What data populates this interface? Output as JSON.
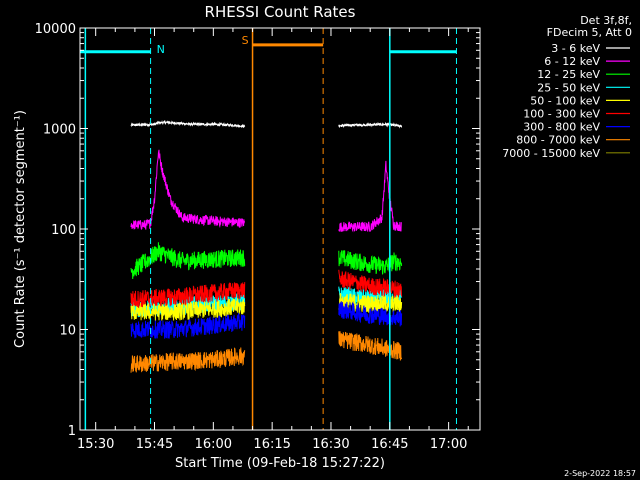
{
  "chart_data": {
    "type": "line",
    "title": "RHESSI Count Rates",
    "xlabel": "Start Time (09-Feb-18 15:27:22)",
    "ylabel": "Count Rate (s⁻¹ detector segment⁻¹)",
    "xlim": [
      "15:26",
      "17:08"
    ],
    "ylim": [
      1,
      10000
    ],
    "yscale": "log",
    "x_ticks": [
      "15:30",
      "15:45",
      "16:00",
      "16:15",
      "16:30",
      "16:45",
      "17:00"
    ],
    "y_ticks": [
      "1",
      "10",
      "100",
      "1000",
      "10000"
    ],
    "legend_header": [
      "Det 3f,8f,",
      "FDecim 5, Att 0"
    ],
    "legend_position": "top-right, outside plot",
    "series": [
      {
        "name": "3 - 6 keV",
        "color": "#ffffff",
        "segments": [
          {
            "x": [
              "15:39",
              "15:45",
              "15:46",
              "15:48",
              "15:55",
              "16:00",
              "16:05",
              "16:08"
            ],
            "y": [
              1080,
              1100,
              1140,
              1150,
              1100,
              1100,
              1080,
              1050
            ]
          },
          {
            "x": [
              "16:32",
              "16:35",
              "16:40",
              "16:44",
              "16:46",
              "16:48"
            ],
            "y": [
              1060,
              1080,
              1090,
              1100,
              1080,
              1050
            ]
          }
        ]
      },
      {
        "name": "6 - 12 keV",
        "color": "#ff00ff",
        "segments": [
          {
            "x": [
              "15:39",
              "15:43",
              "15:44",
              "15:45",
              "15:46",
              "15:47",
              "15:49",
              "15:52",
              "16:00",
              "16:08"
            ],
            "y": [
              110,
              110,
              115,
              200,
              600,
              380,
              200,
              130,
              120,
              115
            ]
          },
          {
            "x": [
              "16:32",
              "16:40",
              "16:43",
              "16:44",
              "16:45",
              "16:46",
              "16:48"
            ],
            "y": [
              105,
              105,
              130,
              430,
              200,
              110,
              105
            ]
          }
        ]
      },
      {
        "name": "12 - 25 keV",
        "color": "#00ff00",
        "segments": [
          {
            "x": [
              "15:39",
              "15:42",
              "15:46",
              "15:48",
              "15:52",
              "16:00",
              "16:08"
            ],
            "y": [
              38,
              45,
              60,
              55,
              48,
              50,
              52
            ]
          },
          {
            "x": [
              "16:32",
              "16:38",
              "16:44",
              "16:46",
              "16:48"
            ],
            "y": [
              52,
              46,
              42,
              48,
              46
            ]
          }
        ]
      },
      {
        "name": "25 - 50 keV",
        "color": "#00ffff",
        "segments": [
          {
            "x": [
              "15:39",
              "15:50",
              "16:00",
              "16:08"
            ],
            "y": [
              16,
              17,
              18,
              19
            ]
          },
          {
            "x": [
              "16:32",
              "16:40",
              "16:48"
            ],
            "y": [
              22,
              20,
              22
            ]
          }
        ]
      },
      {
        "name": "50 - 100 keV",
        "color": "#ffff00",
        "segments": [
          {
            "x": [
              "15:39",
              "15:50",
              "16:00",
              "16:08"
            ],
            "y": [
              15,
              15,
              16,
              17
            ]
          },
          {
            "x": [
              "16:32",
              "16:40",
              "16:48"
            ],
            "y": [
              19,
              18,
              18
            ]
          }
        ]
      },
      {
        "name": "100 - 300 keV",
        "color": "#ff0000",
        "segments": [
          {
            "x": [
              "15:39",
              "15:50",
              "16:00",
              "16:08"
            ],
            "y": [
              20,
              21,
              23,
              25
            ]
          },
          {
            "x": [
              "16:32",
              "16:40",
              "16:48"
            ],
            "y": [
              32,
              27,
              25
            ]
          }
        ]
      },
      {
        "name": "300 - 800 keV",
        "color": "#0000ff",
        "segments": [
          {
            "x": [
              "15:39",
              "15:50",
              "16:00",
              "16:08"
            ],
            "y": [
              10,
              10,
              11,
              12
            ]
          },
          {
            "x": [
              "16:32",
              "16:40",
              "16:48"
            ],
            "y": [
              16,
              14,
              13
            ]
          }
        ]
      },
      {
        "name": "800 - 7000 keV",
        "color": "#ff8800",
        "segments": [
          {
            "x": [
              "15:39",
              "15:50",
              "16:00",
              "16:08"
            ],
            "y": [
              4.5,
              4.8,
              5,
              5.5
            ]
          },
          {
            "x": [
              "16:32",
              "16:40",
              "16:48"
            ],
            "y": [
              8,
              7,
              6
            ]
          }
        ]
      },
      {
        "name": "7000 - 15000 keV",
        "color": "#808000",
        "segments": []
      }
    ],
    "annotations": [
      {
        "label": "N",
        "color": "#00ffff",
        "y": 5800,
        "x": [
          "15:26",
          "15:44"
        ]
      },
      {
        "label": "",
        "color": "#00ffff",
        "y": 5800,
        "x": [
          "16:45",
          "17:02"
        ]
      },
      {
        "label": "S",
        "color": "#ff8800",
        "y": 6800,
        "x": [
          "16:10",
          "16:28"
        ]
      }
    ],
    "vlines": [
      {
        "x": "15:27:22",
        "color": "#00ffff",
        "style": "solid"
      },
      {
        "x": "15:44",
        "color": "#00ffff",
        "style": "dashed"
      },
      {
        "x": "16:45",
        "color": "#00ffff",
        "style": "solid"
      },
      {
        "x": "17:02",
        "color": "#00ffff",
        "style": "dashed"
      },
      {
        "x": "16:10",
        "color": "#ff8800",
        "style": "solid"
      },
      {
        "x": "16:28",
        "color": "#ff8800",
        "style": "dashed"
      }
    ],
    "timestamp": "2-Sep-2022 18:57"
  }
}
